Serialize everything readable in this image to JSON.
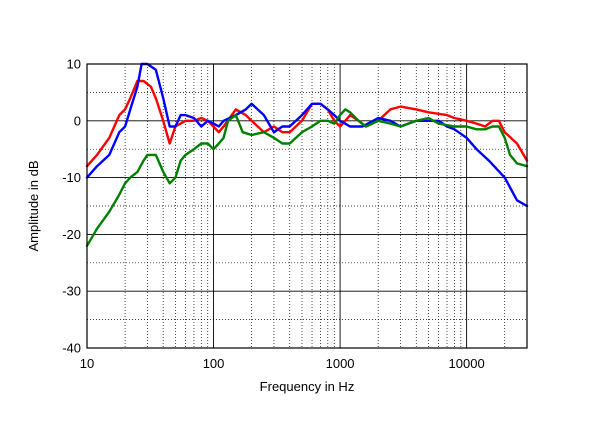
{
  "chart_data": {
    "type": "line",
    "title": "",
    "xlabel": "Frequency in Hz",
    "ylabel": "Amplitude in dB",
    "x_scale": "log",
    "xlim": [
      10,
      30000
    ],
    "ylim": [
      -40,
      10
    ],
    "x_ticks": [
      10,
      100,
      1000,
      10000
    ],
    "x_tick_labels": [
      "10",
      "100",
      "1000",
      "10000"
    ],
    "y_ticks": [
      -40,
      -30,
      -20,
      -10,
      0,
      10
    ],
    "y_tick_labels": [
      "-40",
      "-30",
      "-20",
      "-10",
      "0",
      "10"
    ],
    "grid": true,
    "legend": "none",
    "series": [
      {
        "color": "#ff0000",
        "points": [
          [
            10,
            -8
          ],
          [
            12,
            -6
          ],
          [
            15,
            -3
          ],
          [
            18,
            1
          ],
          [
            20,
            2
          ],
          [
            22,
            4
          ],
          [
            25,
            7
          ],
          [
            28,
            7
          ],
          [
            32,
            6
          ],
          [
            35,
            4
          ],
          [
            40,
            0
          ],
          [
            45,
            -4
          ],
          [
            50,
            -1
          ],
          [
            60,
            0
          ],
          [
            70,
            0
          ],
          [
            80,
            0.5
          ],
          [
            90,
            0
          ],
          [
            100,
            -1
          ],
          [
            110,
            -2
          ],
          [
            120,
            -1
          ],
          [
            150,
            2
          ],
          [
            180,
            1
          ],
          [
            200,
            0
          ],
          [
            250,
            -2
          ],
          [
            300,
            -1
          ],
          [
            350,
            -2
          ],
          [
            400,
            -2
          ],
          [
            500,
            0
          ],
          [
            600,
            3
          ],
          [
            700,
            3
          ],
          [
            800,
            2
          ],
          [
            900,
            0
          ],
          [
            1000,
            -1
          ],
          [
            1100,
            0
          ],
          [
            1200,
            1
          ],
          [
            1400,
            0
          ],
          [
            1600,
            -1
          ],
          [
            2000,
            0
          ],
          [
            2500,
            2
          ],
          [
            3000,
            2.5
          ],
          [
            4000,
            2
          ],
          [
            5000,
            1.5
          ],
          [
            7000,
            1
          ],
          [
            8000,
            0.5
          ],
          [
            10000,
            0
          ],
          [
            12000,
            -0.5
          ],
          [
            14000,
            -1
          ],
          [
            16000,
            0
          ],
          [
            18000,
            0
          ],
          [
            20000,
            -2
          ],
          [
            25000,
            -4
          ],
          [
            30000,
            -7
          ]
        ]
      },
      {
        "color": "#0000ff",
        "points": [
          [
            10,
            -10
          ],
          [
            12,
            -8
          ],
          [
            15,
            -6
          ],
          [
            18,
            -2
          ],
          [
            20,
            -1
          ],
          [
            22,
            2
          ],
          [
            25,
            6
          ],
          [
            27,
            10
          ],
          [
            30,
            10
          ],
          [
            35,
            9
          ],
          [
            40,
            4
          ],
          [
            45,
            -1
          ],
          [
            50,
            -1
          ],
          [
            55,
            1
          ],
          [
            60,
            1
          ],
          [
            70,
            0.5
          ],
          [
            80,
            -1
          ],
          [
            90,
            0
          ],
          [
            100,
            -0.5
          ],
          [
            110,
            -1
          ],
          [
            120,
            0
          ],
          [
            150,
            1
          ],
          [
            180,
            2
          ],
          [
            200,
            3
          ],
          [
            250,
            1
          ],
          [
            300,
            -2
          ],
          [
            350,
            -1
          ],
          [
            400,
            -1
          ],
          [
            500,
            1
          ],
          [
            600,
            3
          ],
          [
            700,
            3
          ],
          [
            800,
            2
          ],
          [
            900,
            1
          ],
          [
            1000,
            0
          ],
          [
            1200,
            -1
          ],
          [
            1500,
            -1
          ],
          [
            2000,
            0.5
          ],
          [
            2500,
            0
          ],
          [
            3000,
            -1
          ],
          [
            4000,
            0
          ],
          [
            5000,
            0
          ],
          [
            6000,
            0
          ],
          [
            7000,
            -1
          ],
          [
            8000,
            -1.5
          ],
          [
            10000,
            -3
          ],
          [
            12000,
            -5
          ],
          [
            15000,
            -7
          ],
          [
            20000,
            -10
          ],
          [
            25000,
            -14
          ],
          [
            30000,
            -15
          ]
        ]
      },
      {
        "color": "#008000",
        "points": [
          [
            10,
            -22
          ],
          [
            12,
            -19
          ],
          [
            15,
            -16
          ],
          [
            18,
            -13
          ],
          [
            20,
            -11
          ],
          [
            22,
            -10
          ],
          [
            25,
            -9
          ],
          [
            28,
            -7
          ],
          [
            30,
            -6
          ],
          [
            35,
            -6
          ],
          [
            40,
            -9
          ],
          [
            45,
            -11
          ],
          [
            50,
            -10
          ],
          [
            55,
            -7
          ],
          [
            60,
            -6
          ],
          [
            70,
            -5
          ],
          [
            80,
            -4
          ],
          [
            90,
            -4
          ],
          [
            100,
            -5
          ],
          [
            110,
            -4
          ],
          [
            120,
            -3
          ],
          [
            130,
            0
          ],
          [
            150,
            1
          ],
          [
            170,
            -2
          ],
          [
            200,
            -2.5
          ],
          [
            250,
            -2
          ],
          [
            300,
            -3
          ],
          [
            350,
            -4
          ],
          [
            400,
            -4
          ],
          [
            500,
            -2
          ],
          [
            600,
            -1
          ],
          [
            700,
            0
          ],
          [
            800,
            0
          ],
          [
            900,
            -0.5
          ],
          [
            1000,
            1
          ],
          [
            1100,
            2
          ],
          [
            1200,
            1.5
          ],
          [
            1400,
            0
          ],
          [
            1600,
            -1
          ],
          [
            2000,
            0
          ],
          [
            2500,
            -0.5
          ],
          [
            3000,
            -1
          ],
          [
            4000,
            0
          ],
          [
            5000,
            0.5
          ],
          [
            6000,
            -0.5
          ],
          [
            8000,
            -1
          ],
          [
            10000,
            -1
          ],
          [
            12000,
            -1.5
          ],
          [
            14000,
            -1.5
          ],
          [
            16000,
            -1
          ],
          [
            18000,
            -1
          ],
          [
            20000,
            -3
          ],
          [
            22000,
            -6
          ],
          [
            25000,
            -7.5
          ],
          [
            30000,
            -8
          ]
        ]
      }
    ]
  }
}
